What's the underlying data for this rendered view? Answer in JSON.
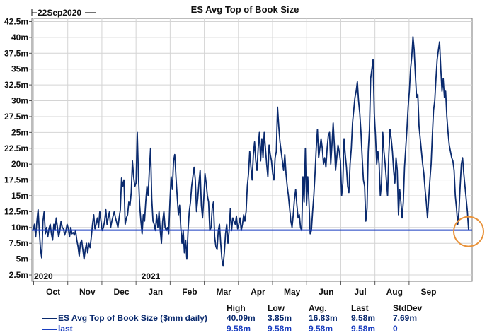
{
  "chart_data": {
    "type": "line",
    "title": "ES Avg Top of Book Size",
    "cursor_label": "22Sep2020",
    "y_ticks": [
      "2.5m",
      "5m",
      "7.5m",
      "10m",
      "12.5m",
      "15m",
      "17.5m",
      "20m",
      "22.5m",
      "25m",
      "27.5m",
      "30m",
      "32.5m",
      "35m",
      "37.5m",
      "40m",
      "42.5m"
    ],
    "y_tick_values": [
      2.5,
      5,
      7.5,
      10,
      12.5,
      15,
      17.5,
      20,
      22.5,
      25,
      27.5,
      30,
      32.5,
      35,
      37.5,
      40,
      42.5
    ],
    "ylim": [
      1.5,
      43.0
    ],
    "x_ticks": [
      "Oct",
      "Nov",
      "Dec",
      "Jan",
      "Feb",
      "Mar",
      "Apr",
      "May",
      "Jun",
      "Jul",
      "Aug",
      "Sep"
    ],
    "year_labels": [
      "2020",
      "2021"
    ],
    "grid": true,
    "series": [
      {
        "name": "ES Avg Top of Book Size ($mm daily)",
        "color": "#0a2a6e",
        "values": [
          9.5,
          10.5,
          8.5,
          11.0,
          12.8,
          9.5,
          6.5,
          5.2,
          11.0,
          12.5,
          9.0,
          10.0,
          8.5,
          9.8,
          10.5,
          9.0,
          8.0,
          10.5,
          9.5,
          11.5,
          10.0,
          8.5,
          9.5,
          11.0,
          10.0,
          9.8,
          8.8,
          9.5,
          10.5,
          9.8,
          8.5,
          10.0,
          9.0,
          9.2,
          8.8,
          9.5,
          8.0,
          7.0,
          5.5,
          7.5,
          8.0,
          6.5,
          5.0,
          6.5,
          7.5,
          6.0,
          7.5,
          6.8,
          8.5,
          10.5,
          12.0,
          9.8,
          10.5,
          11.5,
          10.0,
          12.5,
          11.0,
          9.5,
          10.0,
          11.0,
          12.8,
          10.5,
          11.5,
          12.5,
          10.0,
          11.0,
          11.8,
          12.5,
          11.5,
          10.8,
          10.0,
          11.5,
          12.8,
          17.8,
          16.5,
          17.5,
          10.5,
          11.5,
          12.0,
          14.0,
          13.5,
          15.5,
          20.5,
          18.0,
          16.5,
          17.0,
          25.0,
          18.0,
          13.5,
          11.0,
          9.0,
          12.0,
          11.0,
          14.0,
          16.5,
          15.0,
          19.0,
          22.5,
          14.5,
          11.0,
          10.5,
          9.5,
          12.0,
          10.0,
          12.5,
          9.5,
          7.5,
          11.0,
          12.5,
          10.0,
          9.5,
          10.0,
          9.0,
          14.0,
          18.0,
          16.0,
          20.5,
          21.5,
          18.0,
          15.0,
          12.0,
          13.5,
          10.0,
          7.5,
          9.5,
          6.0,
          8.0,
          5.0,
          9.5,
          12.5,
          14.0,
          16.5,
          18.0,
          19.5,
          17.5,
          12.5,
          14.5,
          17.0,
          19.0,
          13.5,
          11.5,
          14.5,
          18.5,
          17.0,
          15.0,
          14.0,
          9.5,
          10.0,
          13.0,
          14.0,
          8.5,
          7.0,
          6.5,
          9.5,
          10.5,
          7.5,
          5.0,
          3.9,
          6.0,
          9.0,
          10.5,
          7.5,
          9.5,
          13.0,
          9.5,
          11.5,
          11.0,
          10.5,
          11.8,
          9.8,
          10.5,
          11.5,
          9.5,
          10.5,
          12.0,
          11.0,
          12.5,
          16.5,
          18.5,
          22.0,
          19.5,
          17.5,
          21.5,
          23.5,
          20.5,
          19.0,
          22.5,
          25.0,
          20.5,
          24.0,
          21.0,
          25.0,
          22.5,
          20.0,
          18.0,
          23.0,
          21.5,
          20.5,
          18.5,
          17.5,
          21.0,
          22.0,
          29.0,
          26.0,
          23.5,
          22.0,
          20.5,
          19.0,
          21.5,
          18.5,
          16.5,
          15.0,
          13.0,
          11.0,
          10.0,
          12.0,
          14.5,
          16.0,
          13.5,
          11.5,
          12.0,
          10.0,
          9.5,
          18.0,
          14.0,
          22.5,
          13.5,
          18.0,
          14.0,
          9.0,
          9.5,
          12.5,
          15.0,
          18.5,
          22.5,
          25.5,
          21.0,
          22.5,
          24.0,
          22.5,
          20.0,
          21.0,
          19.5,
          22.5,
          24.5,
          25.0,
          20.0,
          23.0,
          26.5,
          23.0,
          19.0,
          21.0,
          23.0,
          22.0,
          20.5,
          15.0,
          17.0,
          24.0,
          21.5,
          19.5,
          16.5,
          15.5,
          20.0,
          22.5,
          26.5,
          28.5,
          30.5,
          31.5,
          33.0,
          30.0,
          28.0,
          25.0,
          21.0,
          17.5,
          16.5,
          11.0,
          13.0,
          22.0,
          25.5,
          33.5,
          35.0,
          36.5,
          28.0,
          24.5,
          20.0,
          22.0,
          20.0,
          15.0,
          17.0,
          25.0,
          22.0,
          20.0,
          17.5,
          15.0,
          21.5,
          25.5,
          24.0,
          22.0,
          19.0,
          17.0,
          21.0,
          19.0,
          12.0,
          16.0,
          14.0,
          11.5,
          14.0,
          19.5,
          22.5,
          25.5,
          29.0,
          31.5,
          35.0,
          37.0,
          40.1,
          38.0,
          34.0,
          30.5,
          31.0,
          26.0,
          24.0,
          22.0,
          20.0,
          18.5,
          16.0,
          14.0,
          11.5,
          14.5,
          17.5,
          20.0,
          24.5,
          28.5,
          30.0,
          33.5,
          36.5,
          38.0,
          39.3,
          35.0,
          31.5,
          33.5,
          30.5,
          31.5,
          27.5,
          25.0,
          23.0,
          22.0,
          21.0,
          20.5,
          19.0,
          15.0,
          13.0,
          10.5,
          12.5,
          16.5,
          20.0,
          21.0,
          18.5,
          16.5,
          14.5,
          12.5,
          9.58
        ]
      },
      {
        "name": "last",
        "color": "#1a3ec0",
        "values": [
          9.58
        ]
      }
    ],
    "stats": {
      "headers": [
        "High",
        "Low",
        "Avg.",
        "Last",
        "StdDev"
      ],
      "rows": [
        {
          "label": "ES Avg Top of Book Size ($mm daily)",
          "values": [
            "40.09m",
            "3.85m",
            "16.83m",
            "9.58m",
            "7.69m"
          ]
        },
        {
          "label": "last",
          "values": [
            "9.58m",
            "9.58m",
            "9.58m",
            "9.58m",
            "0"
          ]
        }
      ]
    },
    "highlight_color": "#e8923a"
  }
}
